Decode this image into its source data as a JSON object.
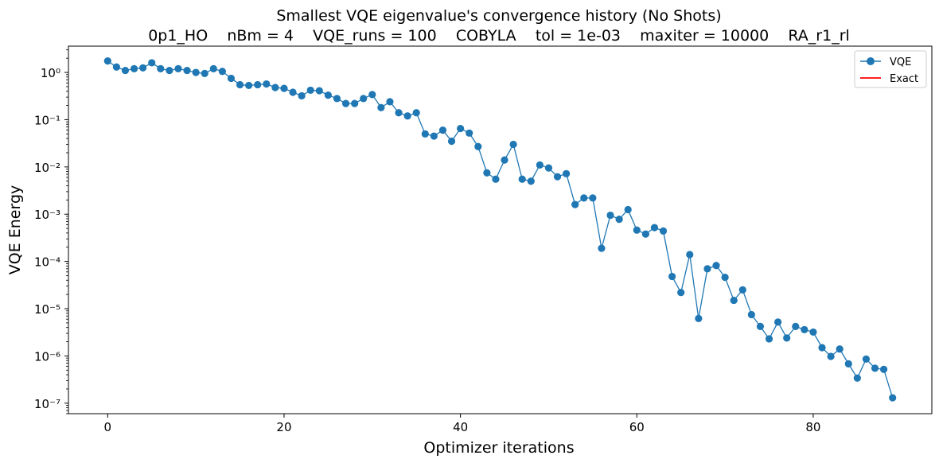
{
  "chart_data": {
    "type": "line",
    "title": "Smallest VQE eigenvalue's convergence history (No Shots)",
    "subtitle": "0p1_HO    nBm = 4    VQE_runs = 100    COBYLA    tol = 1e-03    maxiter = 10000    RA_r1_rl",
    "xlabel": "Optimizer iterations",
    "ylabel": "VQE Energy",
    "yscale": "log",
    "xlim": [
      -4.45,
      93.45
    ],
    "ylim": [
      6e-08,
      3.6
    ],
    "x_ticks": [
      0,
      20,
      40,
      60,
      80
    ],
    "y_ticks": [
      1e-07,
      1e-06,
      1e-05,
      0.0001,
      0.001,
      0.01,
      0.1,
      1
    ],
    "y_tick_labels": [
      "10⁻⁷",
      "10⁻⁶",
      "10⁻⁵",
      "10⁻⁴",
      "10⁻³",
      "10⁻²",
      "10⁻¹",
      "10⁰"
    ],
    "legend_position": "top-right",
    "series": [
      {
        "name": "VQE",
        "color": "#1f77b4",
        "marker": "circle",
        "values": [
          1.75,
          1.3,
          1.1,
          1.2,
          1.25,
          1.6,
          1.2,
          1.1,
          1.2,
          1.1,
          1.0,
          0.95,
          1.2,
          1.05,
          0.75,
          0.55,
          0.53,
          0.55,
          0.57,
          0.48,
          0.46,
          0.38,
          0.32,
          0.42,
          0.41,
          0.33,
          0.28,
          0.22,
          0.22,
          0.28,
          0.34,
          0.18,
          0.24,
          0.14,
          0.12,
          0.14,
          0.05,
          0.045,
          0.06,
          0.035,
          0.065,
          0.052,
          0.027,
          0.0075,
          0.0055,
          0.014,
          0.03,
          0.0055,
          0.005,
          0.011,
          0.0095,
          0.0062,
          0.0072,
          0.0016,
          0.0022,
          0.0022,
          0.00019,
          0.00095,
          0.00078,
          0.00125,
          0.00046,
          0.00038,
          0.00052,
          0.00044,
          4.8e-05,
          2.2e-05,
          0.00014,
          6.2e-06,
          7e-05,
          8.2e-05,
          4.6e-05,
          1.5e-05,
          2.5e-05,
          7.5e-06,
          4.2e-06,
          2.3e-06,
          5.2e-06,
          2.4e-06,
          4.2e-06,
          3.6e-06,
          3.2e-06,
          1.5e-06,
          9.8e-07,
          1.4e-06,
          6.8e-07,
          3.4e-07,
          8.6e-07,
          5.5e-07,
          5.2e-07,
          1.3e-07
        ]
      },
      {
        "name": "Exact",
        "color": "#ff0000",
        "marker": "none",
        "values": []
      }
    ]
  }
}
